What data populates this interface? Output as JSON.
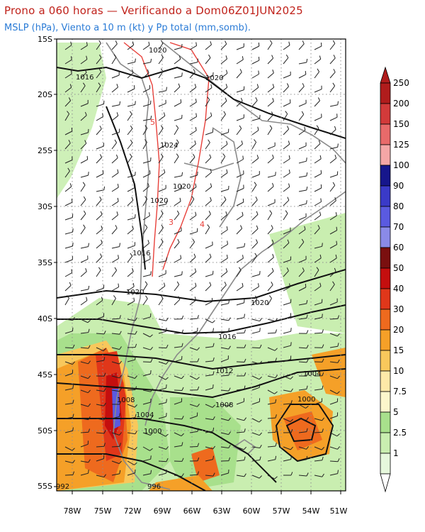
{
  "title": "Prono a 060 horas — Verificando a Dom06Z01JUN2025",
  "subtitle": "MSLP (hPa), Viento a 10 m (kt) y Pp total (mm,somb).",
  "lat_labels": [
    "15S",
    "20S",
    "25S",
    "30S",
    "35S",
    "40S",
    "45S",
    "50S",
    "55S"
  ],
  "lon_labels": [
    "78W",
    "75W",
    "72W",
    "69W",
    "66W",
    "63W",
    "60W",
    "57W",
    "54W",
    "51W"
  ],
  "colorbar": {
    "labels": [
      "250",
      "200",
      "150",
      "125",
      "100",
      "90",
      "80",
      "70",
      "60",
      "50",
      "40",
      "30",
      "20",
      "15",
      "10",
      "7.5",
      "5",
      "2.5",
      "1"
    ],
    "colors": [
      "#b01c1c",
      "#d23a3a",
      "#e86a6a",
      "#f4a6a6",
      "#16168c",
      "#3a3ac8",
      "#5a5ae0",
      "#8a8ae8",
      "#7a0f0f",
      "#c40e0e",
      "#e0371a",
      "#ee6a1e",
      "#f5a028",
      "#f8c85c",
      "#fde9a8",
      "#fcf6cc",
      "#a8e08c",
      "#c9eeb0",
      "#e6f8dc"
    ]
  },
  "isobar_labels": [
    {
      "text": "1020",
      "id": "n1020a"
    },
    {
      "text": "1016",
      "id": "n1016a"
    },
    {
      "text": "1020",
      "id": "n1020b"
    },
    {
      "text": "1024",
      "id": "n1024"
    },
    {
      "text": "1020",
      "id": "n1020c"
    },
    {
      "text": "1020",
      "id": "n1020d"
    },
    {
      "text": "1016",
      "id": "n1016b"
    },
    {
      "text": "1020",
      "id": "n1020e"
    },
    {
      "text": "1020",
      "id": "n1020f"
    },
    {
      "text": "1016",
      "id": "n1016c"
    },
    {
      "text": "1012",
      "id": "n1012"
    },
    {
      "text": "1008",
      "id": "n1008a"
    },
    {
      "text": "1004",
      "id": "n1004a"
    },
    {
      "text": "1000",
      "id": "n1000a"
    },
    {
      "text": "1008",
      "id": "n1008b"
    },
    {
      "text": "1004",
      "id": "n1004b"
    },
    {
      "text": "1000",
      "id": "n1000b"
    },
    {
      "text": "996",
      "id": "n996"
    },
    {
      "text": "992",
      "id": "n992"
    }
  ],
  "red_labels": [
    "5",
    "4",
    "3"
  ]
}
